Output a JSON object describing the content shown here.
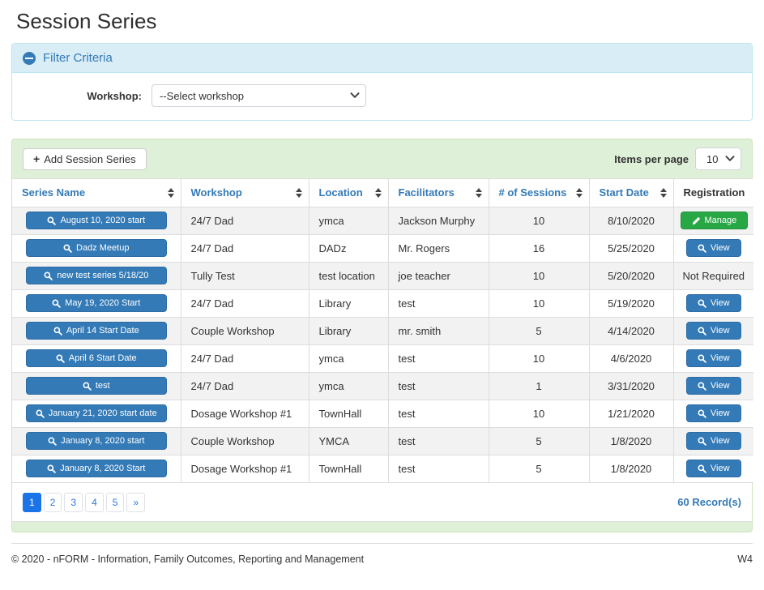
{
  "page": {
    "title": "Session Series",
    "footer_left": "© 2020 - nFORM - Information, Family Outcomes, Reporting and Management",
    "footer_right": "W4"
  },
  "filter": {
    "title": "Filter Criteria",
    "collapse_icon": "minus-circle-icon",
    "workshop_label": "Workshop:",
    "workshop_value": "--Select workshop"
  },
  "toolbar": {
    "add_button_label": "Add Session Series",
    "add_button_icon": "plus-icon",
    "items_per_page_label": "Items per page",
    "items_per_page_value": "10"
  },
  "table": {
    "columns": [
      {
        "label": "Series Name",
        "sortable": true
      },
      {
        "label": "Workshop",
        "sortable": true
      },
      {
        "label": "Location",
        "sortable": true
      },
      {
        "label": "Facilitators",
        "sortable": true
      },
      {
        "label": "# of Sessions",
        "sortable": true
      },
      {
        "label": "Start Date",
        "sortable": true
      },
      {
        "label": "Registration",
        "sortable": false
      }
    ],
    "series_button_icon": "magnifier-icon",
    "view_button_icon": "magnifier-icon",
    "manage_button_icon": "pencil-icon",
    "rows": [
      {
        "series_name": "August 10, 2020 start",
        "workshop": "24/7 Dad",
        "location": "ymca",
        "facilitators": "Jackson Murphy",
        "sessions": "10",
        "start_date": "8/10/2020",
        "registration": {
          "type": "manage",
          "label": "Manage"
        }
      },
      {
        "series_name": "Dadz Meetup",
        "workshop": "24/7 Dad",
        "location": "DADz",
        "facilitators": "Mr. Rogers",
        "sessions": "16",
        "start_date": "5/25/2020",
        "registration": {
          "type": "view",
          "label": "View"
        }
      },
      {
        "series_name": "new test series 5/18/20",
        "workshop": "Tully Test",
        "location": "test location",
        "facilitators": "joe teacher",
        "sessions": "10",
        "start_date": "5/20/2020",
        "registration": {
          "type": "text",
          "label": "Not Required"
        }
      },
      {
        "series_name": "May 19, 2020 Start",
        "workshop": "24/7 Dad",
        "location": "Library",
        "facilitators": "test",
        "sessions": "10",
        "start_date": "5/19/2020",
        "registration": {
          "type": "view",
          "label": "View"
        }
      },
      {
        "series_name": "April 14 Start Date",
        "workshop": "Couple Workshop",
        "location": "Library",
        "facilitators": "mr. smith",
        "sessions": "5",
        "start_date": "4/14/2020",
        "registration": {
          "type": "view",
          "label": "View"
        }
      },
      {
        "series_name": "April 6 Start Date",
        "workshop": "24/7 Dad",
        "location": "ymca",
        "facilitators": "test",
        "sessions": "10",
        "start_date": "4/6/2020",
        "registration": {
          "type": "view",
          "label": "View"
        }
      },
      {
        "series_name": "test",
        "workshop": "24/7 Dad",
        "location": "ymca",
        "facilitators": "test",
        "sessions": "1",
        "start_date": "3/31/2020",
        "registration": {
          "type": "view",
          "label": "View"
        }
      },
      {
        "series_name": "January 21, 2020 start date",
        "workshop": "Dosage Workshop #1",
        "location": "TownHall",
        "facilitators": "test",
        "sessions": "10",
        "start_date": "1/21/2020",
        "registration": {
          "type": "view",
          "label": "View"
        }
      },
      {
        "series_name": "January 8, 2020 start",
        "workshop": "Couple Workshop",
        "location": "YMCA",
        "facilitators": "test",
        "sessions": "5",
        "start_date": "1/8/2020",
        "registration": {
          "type": "view",
          "label": "View"
        }
      },
      {
        "series_name": "January 8, 2020 Start",
        "workshop": "Dosage Workshop #1",
        "location": "TownHall",
        "facilitators": "test",
        "sessions": "5",
        "start_date": "1/8/2020",
        "registration": {
          "type": "view",
          "label": "View"
        }
      }
    ]
  },
  "pagination": {
    "pages": [
      "1",
      "2",
      "3",
      "4",
      "5",
      "»"
    ],
    "active_page": "1",
    "records_label": "60 Record(s)"
  },
  "colors": {
    "accent_blue": "#337ab7",
    "success_green": "#28a745",
    "filter_header_bg": "#d9edf7",
    "panel_green_bg": "#dff0d8",
    "active_page_blue": "#1b73e8",
    "row_stripe": "#f2f2f2"
  }
}
